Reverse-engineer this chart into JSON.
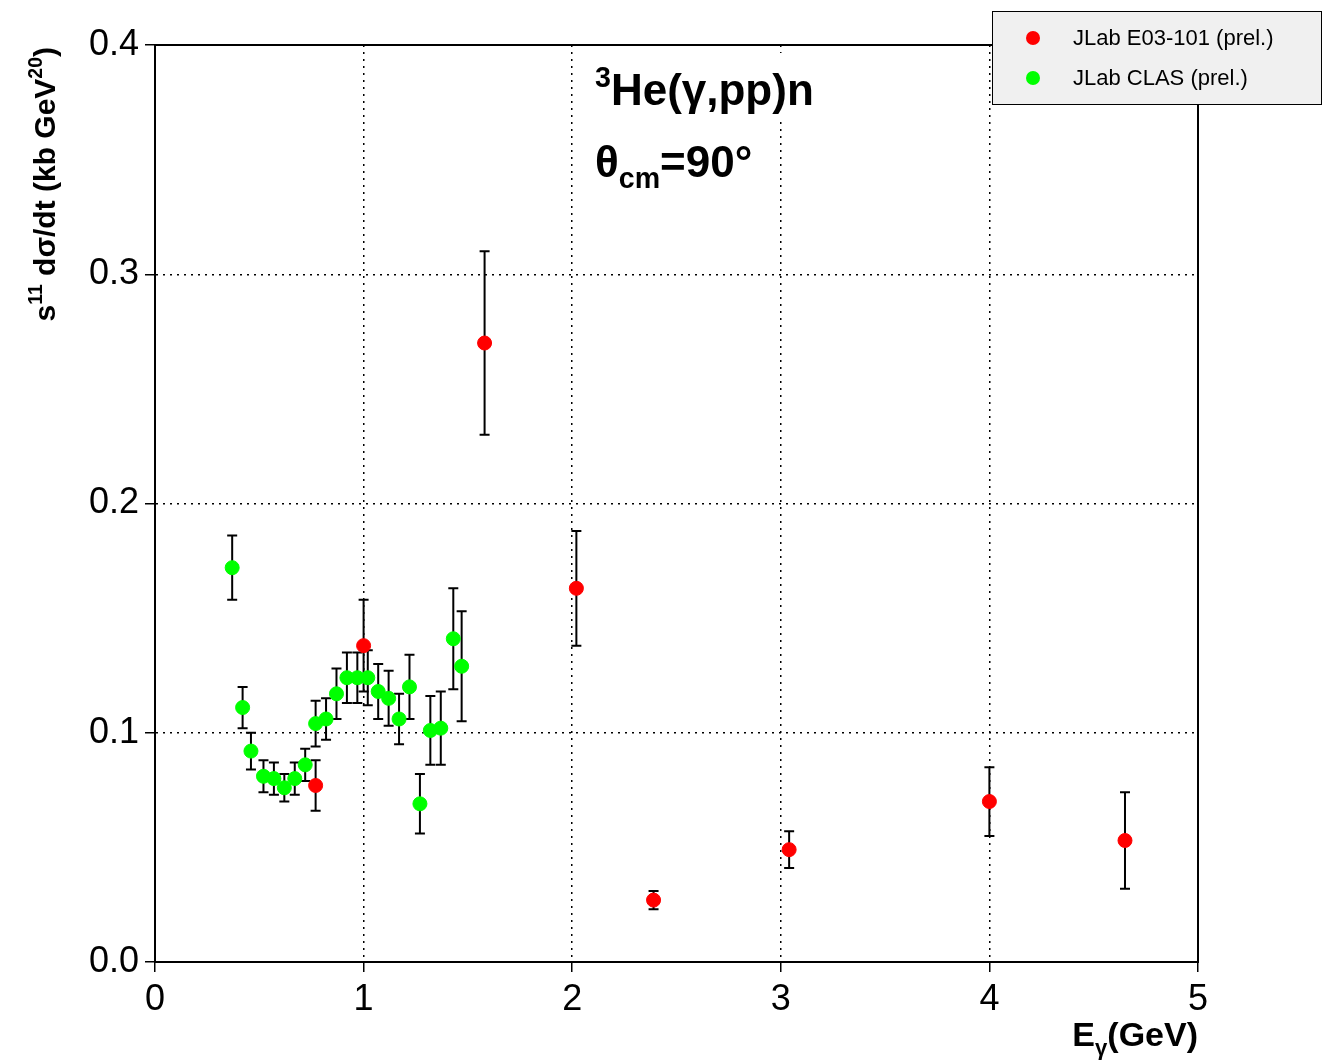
{
  "chart_data": {
    "type": "scatter",
    "xlabel": "E$_{γ}$(GeV)",
    "ylabel": "s$^{11}$ dσ/dt (kb GeV$^{20}$)",
    "annotations": [
      "$^{3}$He(γ,pp)n",
      "θ$_{cm}$=90°"
    ],
    "xlim": [
      0,
      5
    ],
    "xticks": [
      0,
      1,
      2,
      3,
      4,
      5
    ],
    "ylim": [
      0,
      0.4
    ],
    "yticks": [
      {
        "value": 0,
        "label": "0.0"
      },
      0.1,
      0.2,
      0.3,
      0.4
    ],
    "grid": true,
    "legend": "top right",
    "marker": "circle",
    "series": [
      {
        "name": "JLab E03-101 (prel.)",
        "color": "#ff0000",
        "x": [
          0.77,
          1.0,
          1.58,
          2.02,
          2.39,
          3.04,
          4.0,
          4.65
        ],
        "values": [
          0.077,
          0.138,
          0.27,
          0.163,
          0.027,
          0.049,
          0.07,
          0.053
        ],
        "errors": [
          0.011,
          0.02,
          0.04,
          0.025,
          0.004,
          0.008,
          0.015,
          0.021
        ]
      },
      {
        "name": "JLab CLAS (prel.)",
        "color": "#00ff00",
        "x": [
          0.37,
          0.42,
          0.46,
          0.52,
          0.57,
          0.62,
          0.67,
          0.72,
          0.77,
          0.82,
          0.87,
          0.92,
          0.97,
          1.02,
          1.07,
          1.12,
          1.17,
          1.22,
          1.27,
          1.32,
          1.37,
          1.43,
          1.47
        ],
        "values": [
          0.172,
          0.111,
          0.092,
          0.081,
          0.08,
          0.076,
          0.08,
          0.086,
          0.104,
          0.106,
          0.117,
          0.124,
          0.124,
          0.124,
          0.118,
          0.115,
          0.106,
          0.12,
          0.069,
          0.101,
          0.102,
          0.141,
          0.129
        ],
        "errors": [
          0.014,
          0.009,
          0.008,
          0.007,
          0.007,
          0.006,
          0.007,
          0.007,
          0.01,
          0.009,
          0.011,
          0.011,
          0.011,
          0.012,
          0.012,
          0.012,
          0.011,
          0.014,
          0.013,
          0.015,
          0.016,
          0.022,
          0.024
        ]
      }
    ]
  }
}
